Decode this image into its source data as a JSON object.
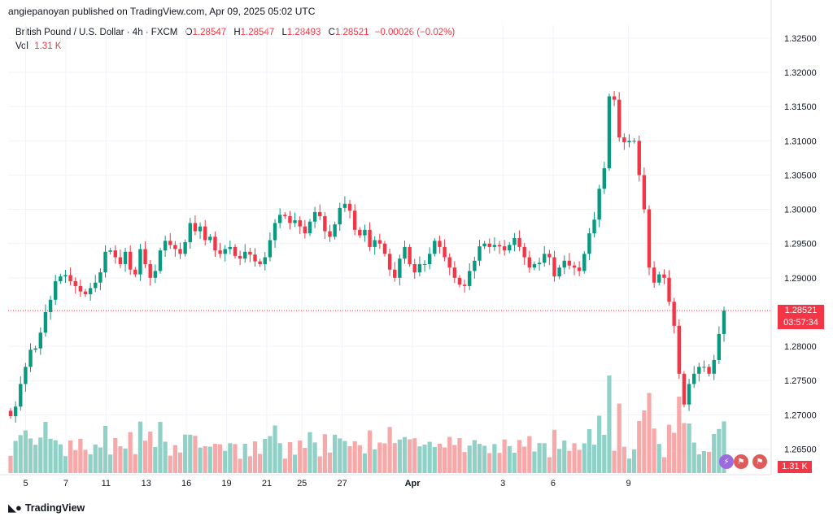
{
  "attribution": "angiepanoyan published on TradingView.com, Apr 09, 2025 05:02 UTC",
  "legend": {
    "symbol": "British Pound / U.S. Dollar · 4h · FXCM",
    "o_label": "O",
    "o_value": "1.28547",
    "h_label": "H",
    "h_value": "1.28547",
    "l_label": "L",
    "l_value": "1.28493",
    "c_label": "C",
    "c_value": "1.28521",
    "change": "−0.00026 (−0.02%)",
    "vol_label": "Vol",
    "vol_value": "1.31 K"
  },
  "price_tag": {
    "price": "1.28521",
    "countdown": "03:57:34"
  },
  "vol_tag": "1.31 K",
  "footer": {
    "brand": "TradingView"
  },
  "colors": {
    "up": "#089981",
    "down": "#f23645",
    "up_vol": "#8fd1c6",
    "down_vol": "#f7a9a9",
    "grid": "#f0f3fa"
  },
  "icons": [
    "lightning-icon",
    "us-flag-icon",
    "us-flag-icon"
  ],
  "chart_data": {
    "type": "candlestick",
    "title": "British Pound / U.S. Dollar · 4h · FXCM",
    "y_axis": {
      "ticks": [
        "1.32500",
        "1.32000",
        "1.31500",
        "1.31000",
        "1.30500",
        "1.30000",
        "1.29500",
        "1.29000",
        "1.28500",
        "1.28000",
        "1.27500",
        "1.27000",
        "1.26500"
      ],
      "range": [
        1.2615,
        1.327
      ]
    },
    "x_axis": {
      "ticks": [
        "5",
        "7",
        "11",
        "13",
        "16",
        "19",
        "21",
        "25",
        "27",
        "Apr",
        "3",
        "6",
        "9"
      ]
    },
    "last_price": 1.28521,
    "closes": [
      1.2698,
      1.2712,
      1.2745,
      1.277,
      1.2795,
      1.2797,
      1.282,
      1.285,
      1.2868,
      1.2895,
      1.2902,
      1.2904,
      1.2895,
      1.2888,
      1.288,
      1.2876,
      1.2885,
      1.2893,
      1.2908,
      1.2938,
      1.294,
      1.293,
      1.292,
      1.2938,
      1.2912,
      1.2905,
      1.2942,
      1.292,
      1.29,
      1.291,
      1.294,
      1.2954,
      1.2948,
      1.2942,
      1.2935,
      1.2952,
      1.298,
      1.2968,
      1.2975,
      1.2955,
      1.296,
      1.294,
      1.2935,
      1.2942,
      1.2945,
      1.2932,
      1.2928,
      1.2938,
      1.2934,
      1.2924,
      1.292,
      1.293,
      1.2955,
      1.298,
      1.2992,
      1.299,
      1.298,
      1.2984,
      1.2975,
      1.2965,
      1.2982,
      1.2996,
      1.299,
      1.2968,
      1.296,
      1.2978,
      1.3002,
      1.3008,
      1.2998,
      1.297,
      1.2962,
      1.297,
      1.2945,
      1.2955,
      1.295,
      1.2935,
      1.2912,
      1.29,
      1.2928,
      1.2945,
      1.292,
      1.2908,
      1.292,
      1.292,
      1.2935,
      1.2954,
      1.2945,
      1.293,
      1.2915,
      1.29,
      1.289,
      1.2888,
      1.291,
      1.2925,
      1.2946,
      1.295,
      1.2945,
      1.2948,
      1.2946,
      1.294,
      1.2948,
      1.2958,
      1.2945,
      1.293,
      1.2915,
      1.292,
      1.2922,
      1.2935,
      1.293,
      1.2902,
      1.2915,
      1.2925,
      1.2918,
      1.2915,
      1.291,
      1.2935,
      1.2965,
      1.2985,
      1.303,
      1.306,
      1.3165,
      1.316,
      1.3105,
      1.3098,
      1.31,
      1.31,
      1.305,
      1.3,
      1.2915,
      1.2893,
      1.2905,
      1.29,
      1.2865,
      1.283,
      1.276,
      1.2715,
      1.2745,
      1.276,
      1.277,
      1.277,
      1.276,
      1.278,
      1.2818,
      1.2852
    ],
    "volume_scale": "relative"
  }
}
